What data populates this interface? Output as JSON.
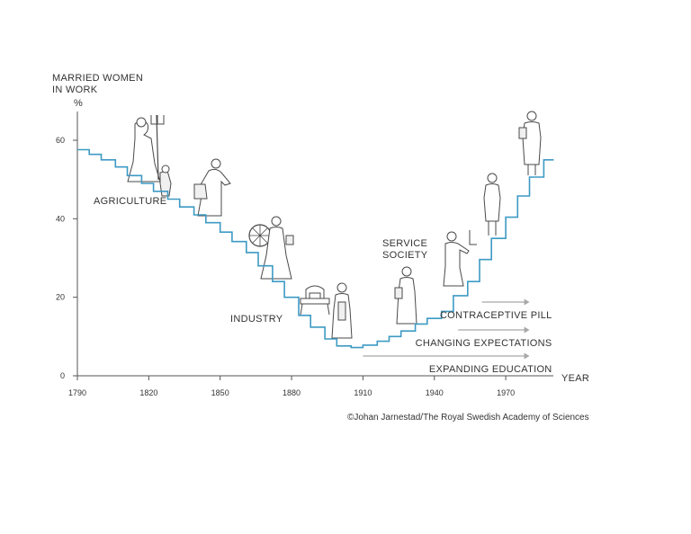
{
  "chart_data": {
    "type": "line",
    "ylabel": "MARRIED WOMEN IN WORK",
    "ylabel_lines": [
      "MARRIED WOMEN",
      "IN WORK"
    ],
    "y_unit": "%",
    "xlabel": "YEAR",
    "xlim": [
      1790,
      1990
    ],
    "ylim": [
      0,
      65
    ],
    "x_ticks": [
      1790,
      1820,
      1850,
      1880,
      1910,
      1940,
      1970
    ],
    "y_ticks": [
      0,
      20,
      40,
      60
    ],
    "grid": false,
    "line_color": "#3d9ac4",
    "series": [
      {
        "step": true,
        "x": [
          1790,
          1795,
          1800,
          1806,
          1811,
          1817,
          1822,
          1828,
          1833,
          1839,
          1844,
          1850,
          1855,
          1861,
          1866,
          1872,
          1877,
          1883,
          1888,
          1894,
          1899,
          1905,
          1910,
          1916,
          1921,
          1926,
          1932,
          1937,
          1943,
          1948,
          1954,
          1959,
          1964,
          1970,
          1975,
          1980,
          1986
        ],
        "y": [
          57.6,
          56.4,
          55.0,
          53.2,
          51.0,
          49.0,
          47.0,
          45.0,
          43.0,
          41.0,
          39.0,
          36.6,
          34.2,
          31.4,
          28.0,
          24.0,
          20.0,
          15.4,
          12.4,
          9.4,
          7.6,
          7.2,
          7.8,
          8.8,
          10.0,
          11.4,
          13.2,
          14.6,
          16.4,
          20.4,
          24.0,
          29.6,
          35.0,
          40.4,
          45.8,
          50.6,
          55.0
        ]
      }
    ],
    "annotations": [
      {
        "text": "AGRICULTURE"
      },
      {
        "text": "INDUSTRY"
      },
      {
        "text": "SERVICE",
        "text2": "SOCIETY"
      }
    ],
    "trends": [
      {
        "text": "CONTRACEPTIVE PILL",
        "x_start": 1960,
        "x_end": 1980
      },
      {
        "text": "CHANGING EXPECTATIONS",
        "x_start": 1950,
        "x_end": 1980
      },
      {
        "text": "EXPANDING EDUCATION",
        "x_start": 1910,
        "x_end": 1980
      }
    ],
    "trend_color": "#a8a8a8",
    "axis_color": "#555555"
  },
  "credit": "©Johan Jarnestad/The Royal Swedish Academy of Sciences"
}
